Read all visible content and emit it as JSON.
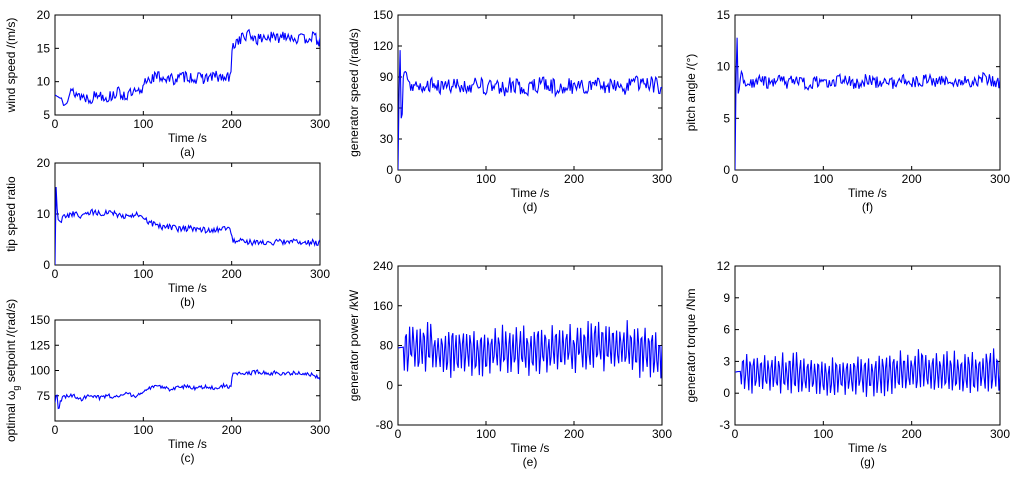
{
  "chart_data": [
    {
      "id": "a",
      "type": "line",
      "caption": "(a)",
      "xlabel": "Time /s",
      "ylabel": "wind speed /(m/s)",
      "xlim": [
        0,
        300
      ],
      "ylim": [
        5,
        20
      ],
      "xticks": [
        "0",
        "100",
        "200",
        "300"
      ],
      "yticks": [
        "5",
        "10",
        "15",
        "20"
      ],
      "series": [
        {
          "color": "#0000ff",
          "x": [
            0,
            10,
            20,
            30,
            40,
            50,
            60,
            70,
            80,
            90,
            99,
            101,
            110,
            120,
            130,
            140,
            150,
            160,
            170,
            180,
            190,
            199,
            201,
            210,
            220,
            230,
            240,
            250,
            260,
            270,
            280,
            290,
            300
          ],
          "y": [
            8.0,
            7.2,
            8.5,
            7.8,
            7.5,
            8.2,
            7.6,
            8.4,
            7.9,
            8.3,
            8.2,
            10.2,
            10.6,
            10.8,
            10.3,
            10.5,
            10.9,
            10.4,
            10.6,
            10.8,
            10.5,
            10.6,
            15.5,
            16.5,
            17.0,
            16.3,
            16.8,
            16.4,
            17.2,
            16.6,
            16.3,
            16.8,
            16.0
          ]
        }
      ]
    },
    {
      "id": "b",
      "type": "line",
      "caption": "(b)",
      "xlabel": "Time /s",
      "ylabel": "tip speed ratio",
      "xlim": [
        0,
        300
      ],
      "ylim": [
        0,
        20
      ],
      "xticks": [
        "0",
        "100",
        "200",
        "300"
      ],
      "yticks": [
        "0",
        "10",
        "20"
      ],
      "series": [
        {
          "color": "#0000ff",
          "x": [
            0,
            1,
            3,
            6,
            10,
            20,
            30,
            40,
            50,
            60,
            70,
            80,
            90,
            100,
            110,
            120,
            130,
            140,
            150,
            160,
            170,
            180,
            190,
            199,
            201,
            210,
            220,
            230,
            240,
            250,
            260,
            270,
            280,
            290,
            300
          ],
          "y": [
            0,
            16.0,
            9.0,
            8.5,
            9.5,
            10.0,
            9.5,
            10.5,
            10.0,
            10.5,
            10.0,
            9.5,
            10.0,
            9.0,
            8.0,
            7.5,
            7.5,
            7.0,
            7.2,
            7.0,
            6.8,
            7.0,
            7.2,
            7.0,
            4.5,
            4.6,
            4.4,
            4.5,
            4.3,
            4.6,
            4.4,
            4.5,
            4.3,
            4.5,
            4.4
          ]
        }
      ]
    },
    {
      "id": "c",
      "type": "line",
      "caption": "(c)",
      "xlabel": "Time /s",
      "ylabel": "optimal ω setpoint /(rad/s)",
      "ylabel_subscript": "g",
      "xlim": [
        0,
        300
      ],
      "ylim": [
        50,
        150
      ],
      "xticks": [
        "0",
        "100",
        "200",
        "300"
      ],
      "yticks": [
        "75",
        "100",
        "125",
        "150"
      ],
      "series": [
        {
          "color": "#0000ff",
          "x": [
            0,
            2,
            4,
            6,
            10,
            20,
            30,
            40,
            50,
            60,
            70,
            80,
            90,
            99,
            101,
            110,
            120,
            130,
            140,
            150,
            160,
            170,
            180,
            190,
            199,
            201,
            210,
            220,
            230,
            240,
            250,
            260,
            270,
            280,
            290,
            300
          ],
          "y": [
            68,
            80,
            58,
            70,
            74,
            75,
            72,
            76,
            73,
            75,
            74,
            77,
            75,
            77,
            80,
            83,
            84,
            81,
            83,
            85,
            82,
            84,
            83,
            85,
            83,
            97,
            98,
            97,
            99,
            97,
            98,
            96,
            98,
            97,
            96,
            92
          ]
        }
      ]
    },
    {
      "id": "d",
      "type": "line",
      "caption": "(d)",
      "xlabel": "Time /s",
      "ylabel": "generator speed /(rad/s)",
      "xlim": [
        0,
        300
      ],
      "ylim": [
        0,
        150
      ],
      "xticks": [
        "0",
        "100",
        "200",
        "300"
      ],
      "yticks": [
        "0",
        "30",
        "60",
        "90",
        "120",
        "150"
      ],
      "series": [
        {
          "color": "#0000ff",
          "x": [
            0,
            1,
            2,
            3,
            4,
            5,
            6,
            8,
            10,
            15,
            20,
            30,
            40,
            50,
            60,
            70,
            80,
            90,
            100,
            110,
            120,
            130,
            140,
            150,
            160,
            170,
            180,
            190,
            200,
            210,
            220,
            230,
            240,
            250,
            260,
            270,
            280,
            290,
            300
          ],
          "y": [
            0,
            60,
            140,
            80,
            30,
            60,
            90,
            100,
            88,
            80,
            85,
            78,
            82,
            79,
            83,
            80,
            81,
            84,
            80,
            82,
            79,
            83,
            81,
            80,
            82,
            84,
            79,
            83,
            81,
            80,
            84,
            82,
            80,
            83,
            79,
            85,
            81,
            83,
            80
          ]
        }
      ]
    },
    {
      "id": "e",
      "type": "line",
      "caption": "(e)",
      "xlabel": "Time /s",
      "ylabel": "generator power /kW",
      "xlim": [
        0,
        300
      ],
      "ylim": [
        -80,
        240
      ],
      "xticks": [
        "0",
        "100",
        "200",
        "300"
      ],
      "yticks": [
        "-80",
        "0",
        "80",
        "160",
        "240"
      ],
      "series": [
        {
          "color": "#0000ff",
          "x": [
            0,
            10,
            20,
            30,
            40,
            50,
            60,
            70,
            80,
            90,
            100,
            110,
            120,
            130,
            140,
            150,
            160,
            170,
            180,
            190,
            200,
            210,
            220,
            230,
            240,
            250,
            260,
            270,
            280,
            290,
            300
          ],
          "y": [
            75,
            78,
            76,
            74,
            72,
            70,
            68,
            67,
            66,
            66,
            67,
            68,
            70,
            72,
            73,
            72,
            70,
            70,
            72,
            74,
            76,
            78,
            80,
            79,
            77,
            75,
            74,
            72,
            70,
            69,
            68
          ]
        }
      ]
    },
    {
      "id": "f",
      "type": "line",
      "caption": "(f)",
      "xlabel": "Time /s",
      "ylabel": "pitch angle /(°)",
      "xlim": [
        0,
        300
      ],
      "ylim": [
        0,
        15
      ],
      "xticks": [
        "0",
        "100",
        "200",
        "300"
      ],
      "yticks": [
        "0",
        "5",
        "10",
        "15"
      ],
      "series": [
        {
          "color": "#0000ff",
          "x": [
            0,
            1,
            2,
            3,
            4,
            5,
            8,
            10,
            20,
            30,
            40,
            50,
            60,
            70,
            80,
            90,
            100,
            110,
            120,
            130,
            140,
            150,
            160,
            170,
            180,
            190,
            200,
            210,
            220,
            230,
            240,
            250,
            260,
            270,
            280,
            290,
            300
          ],
          "y": [
            0,
            8,
            14,
            11,
            5,
            8.5,
            9.5,
            8.5,
            8.2,
            8.7,
            8.3,
            8.6,
            8.4,
            8.8,
            8.3,
            8.5,
            8.6,
            8.4,
            8.7,
            8.5,
            8.3,
            8.8,
            8.5,
            8.6,
            8.4,
            8.7,
            8.5,
            8.6,
            8.8,
            8.4,
            8.9,
            8.5,
            8.7,
            8.4,
            8.9,
            8.6,
            8.4
          ]
        }
      ]
    },
    {
      "id": "g",
      "type": "line",
      "caption": "(g)",
      "xlabel": "Time /s",
      "ylabel": "generator torque /Nm",
      "xlim": [
        0,
        300
      ],
      "ylim": [
        -3,
        12
      ],
      "xticks": [
        "0",
        "100",
        "200",
        "300"
      ],
      "yticks": [
        "-3",
        "0",
        "3",
        "6",
        "9",
        "12"
      ],
      "series": [
        {
          "color": "#0000ff",
          "x": [
            0,
            10,
            20,
            30,
            40,
            50,
            60,
            70,
            80,
            90,
            100,
            110,
            120,
            130,
            140,
            150,
            160,
            170,
            180,
            190,
            200,
            210,
            220,
            230,
            240,
            250,
            260,
            270,
            280,
            290,
            300
          ],
          "y": [
            2.0,
            2.1,
            2.0,
            1.9,
            1.9,
            1.8,
            1.9,
            2.0,
            1.8,
            1.6,
            1.5,
            1.5,
            1.6,
            1.7,
            1.7,
            1.6,
            1.7,
            1.8,
            1.9,
            2.0,
            2.1,
            2.2,
            2.2,
            2.1,
            1.9,
            1.8,
            1.8,
            1.9,
            2.0,
            2.1,
            2.0
          ]
        }
      ]
    }
  ]
}
